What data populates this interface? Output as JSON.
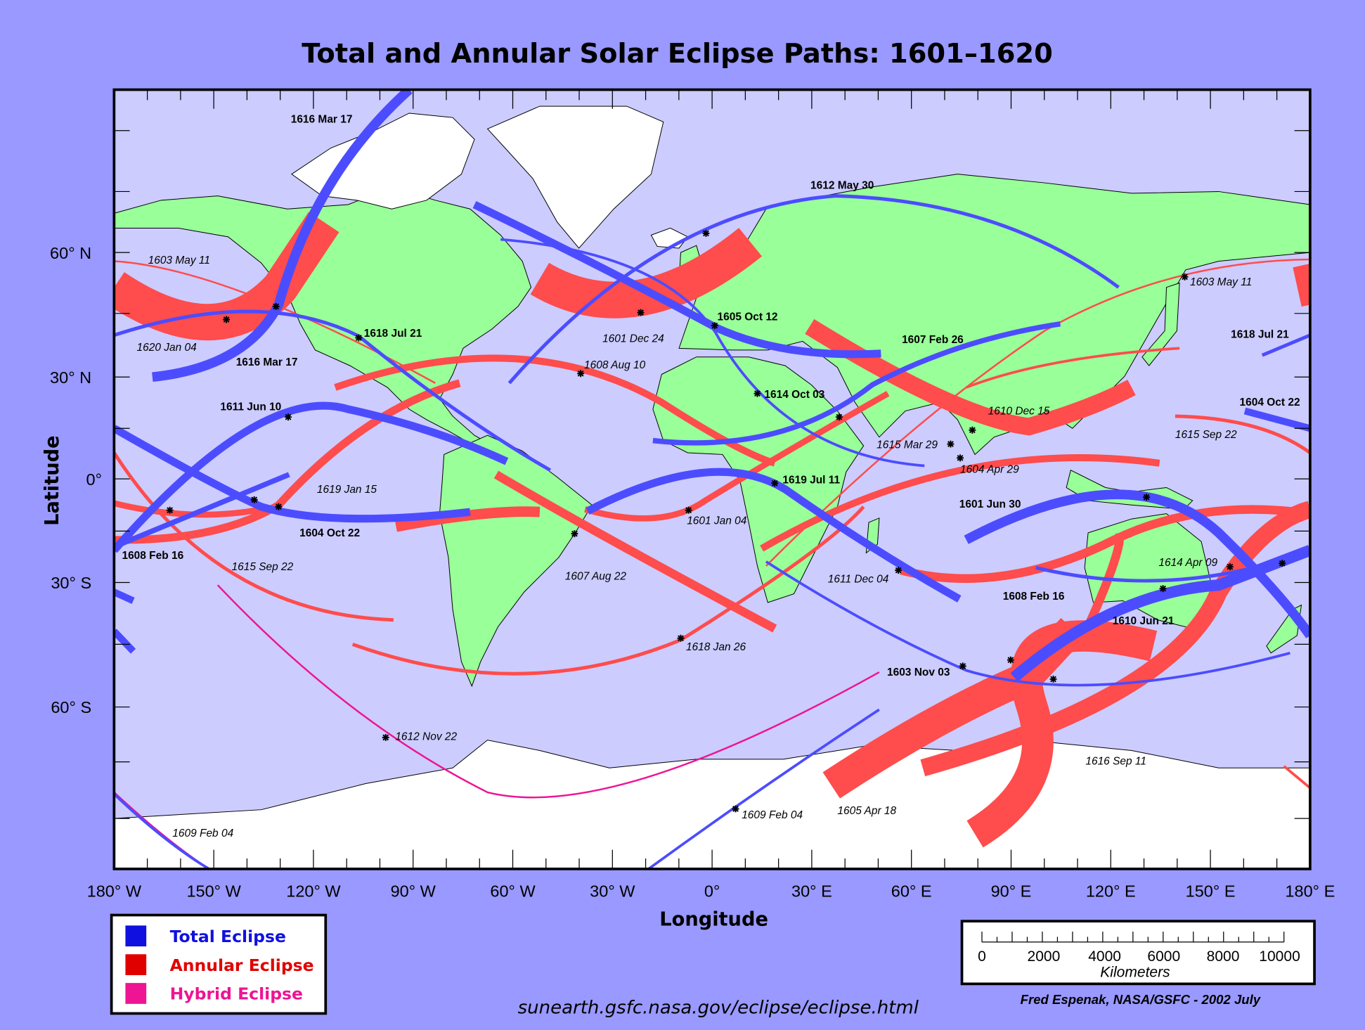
{
  "title": "Total and Annular Solar Eclipse Paths:  1601–1620",
  "axes": {
    "xlabel": "Longitude",
    "ylabel": "Latitude",
    "x_ticks": [
      "180° W",
      "150° W",
      "120° W",
      "90° W",
      "60° W",
      "30° W",
      "0°",
      "30° E",
      "60° E",
      "90° E",
      "120° E",
      "150° E",
      "180° E"
    ],
    "y_ticks": [
      "60° N",
      "30° N",
      "0°",
      "30° S",
      "60° S"
    ]
  },
  "colors": {
    "total": "#4c4cff",
    "annular": "#ff4c4c",
    "hybrid": "#ee1493",
    "land": "#99ff99",
    "ocean": "#ccccff",
    "ice": "#ffffff",
    "background": "#9999ff"
  },
  "legend": [
    {
      "label": "Total Eclipse",
      "color": "#1010e0"
    },
    {
      "label": "Annular Eclipse",
      "color": "#e00000"
    },
    {
      "label": "Hybrid Eclipse",
      "color": "#ee1493"
    }
  ],
  "eclipse_labels": {
    "t_1616_mar_17a": "1616 Mar 17",
    "t_1616_mar_17b": "1616 Mar 17",
    "t_1618_jul_21a": "1618 Jul 21",
    "t_1618_jul_21b": "1618 Jul 21",
    "t_1611_jun_10": "1611 Jun 10",
    "t_1604_oct_22a": "1604 Oct 22",
    "t_1604_oct_22b": "1604 Oct 22",
    "t_1608_feb_16a": "1608 Feb 16",
    "t_1608_feb_16b": "1608 Feb 16",
    "t_1612_may_30": "1612 May 30",
    "t_1605_oct_12": "1605 Oct 12",
    "t_1607_feb_26": "1607 Feb 26",
    "t_1614_oct_03": "1614 Oct 03",
    "t_1619_jul_11": "1619 Jul 11",
    "t_1601_jun_30": "1601 Jun 30",
    "t_1610_jun_21": "1610 Jun 21",
    "t_1603_nov_03": "1603 Nov 03",
    "a_1603_may_11a": "1603 May 11",
    "a_1603_may_11b": "1603 May 11",
    "a_1620_jan_04": "1620 Jan 04",
    "a_1601_dec_24": "1601 Dec 24",
    "a_1608_aug_10": "1608 Aug 10",
    "a_1619_jan_15": "1619 Jan 15",
    "a_1615_sep_22a": "1615 Sep 22",
    "a_1615_sep_22b": "1615 Sep 22",
    "a_1607_aug_22": "1607 Aug 22",
    "a_1601_jan_04": "1601 Jan 04",
    "a_1618_jan_26": "1618 Jan 26",
    "a_1611_dec_04": "1611 Dec 04",
    "a_1615_mar_29": "1615 Mar 29",
    "a_1604_apr_29": "1604 Apr 29",
    "a_1610_dec_15": "1610 Dec 15",
    "a_1614_apr_09": "1614 Apr 09",
    "a_1616_sep_11": "1616 Sep 11",
    "a_1605_apr_18": "1605 Apr 18",
    "h_1612_nov_22": "1612 Nov 22",
    "h_1609_feb_04a": "1609 Feb 04",
    "h_1609_feb_04b": "1609 Feb 04"
  },
  "scale": {
    "ticks": [
      "0",
      "2000",
      "4000",
      "6000",
      "8000",
      "10000"
    ],
    "unit": "Kilometers"
  },
  "url": "sunearth.gsfc.nasa.gov/eclipse/eclipse.html",
  "credit": "Fred Espenak, NASA/GSFC - 2002 July"
}
